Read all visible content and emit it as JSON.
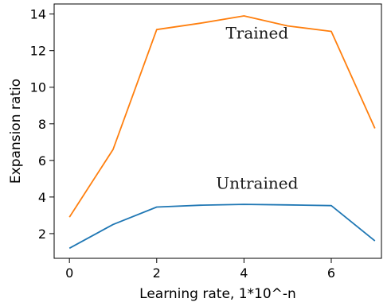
{
  "chart_data": {
    "type": "line",
    "xlabel": "Learning rate, 1*10^-n",
    "ylabel": "Expansion ratio",
    "xlim": [
      -0.35,
      7.15
    ],
    "ylim": [
      0.65,
      14.55
    ],
    "xticks": [
      0,
      2,
      4,
      6
    ],
    "yticks": [
      2,
      4,
      6,
      8,
      10,
      12,
      14
    ],
    "grid": false,
    "series": [
      {
        "color": "#ff7f0e",
        "x": [
          0,
          1,
          2,
          3,
          4,
          5,
          6,
          7
        ],
        "y": [
          2.9,
          6.6,
          13.15,
          13.5,
          13.9,
          13.35,
          13.05,
          7.75
        ]
      },
      {
        "color": "#1f77b4",
        "x": [
          0,
          1,
          2,
          3,
          4,
          5,
          6,
          7
        ],
        "y": [
          1.2,
          2.5,
          3.45,
          3.55,
          3.6,
          3.57,
          3.53,
          1.6
        ]
      }
    ],
    "annotations": [
      {
        "text": "Trained",
        "x": 4.3,
        "y": 12.65
      },
      {
        "text": "Untrained",
        "x": 4.3,
        "y": 4.45
      }
    ]
  }
}
